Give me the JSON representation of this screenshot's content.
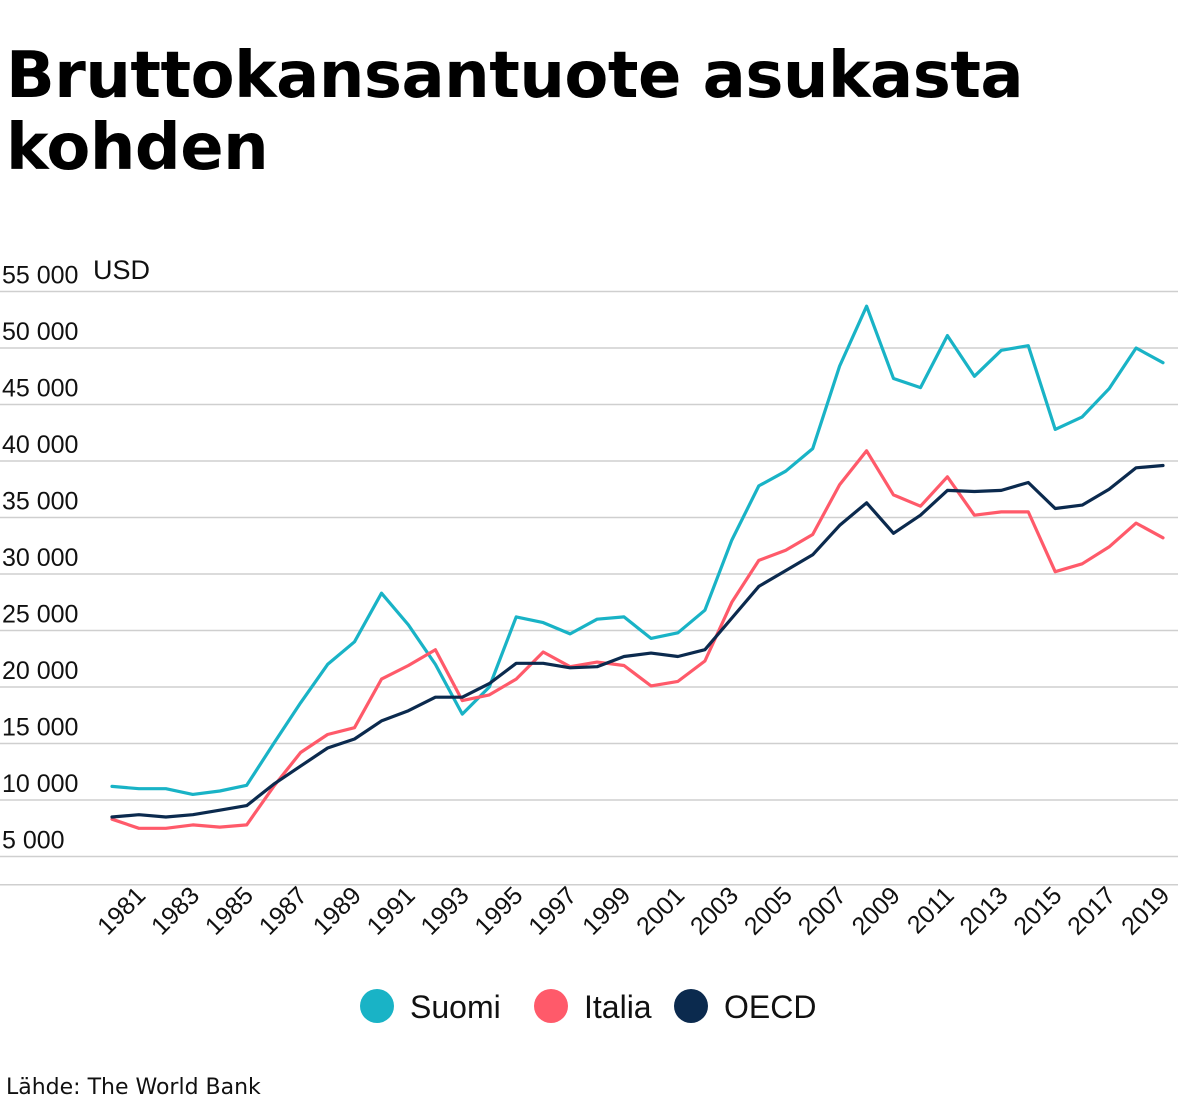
{
  "chart_data": {
    "type": "line",
    "title": "Bruttokansantuote asukasta kohden",
    "ylabel": "USD",
    "ylim": [
      3000,
      55000
    ],
    "yticks": [
      {
        "value": 55000,
        "label": "55 000"
      },
      {
        "value": 50000,
        "label": "50 000"
      },
      {
        "value": 45000,
        "label": "45 000"
      },
      {
        "value": 40000,
        "label": "40 000"
      },
      {
        "value": 35000,
        "label": "35 000"
      },
      {
        "value": 30000,
        "label": "30 000"
      },
      {
        "value": 25000,
        "label": "25 000"
      },
      {
        "value": 20000,
        "label": "20 000"
      },
      {
        "value": 15000,
        "label": "15 000"
      },
      {
        "value": 10000,
        "label": "10 000"
      },
      {
        "value": 5000,
        "label": "5 000"
      }
    ],
    "x": [
      1980,
      1981,
      1982,
      1983,
      1984,
      1985,
      1986,
      1987,
      1988,
      1989,
      1990,
      1991,
      1992,
      1993,
      1994,
      1995,
      1996,
      1997,
      1998,
      1999,
      2000,
      2001,
      2002,
      2003,
      2004,
      2005,
      2006,
      2007,
      2008,
      2009,
      2010,
      2011,
      2012,
      2013,
      2014,
      2015,
      2016,
      2017,
      2018,
      2019
    ],
    "xticks": [
      "1981",
      "1983",
      "1985",
      "1987",
      "1989",
      "1991",
      "1993",
      "1995",
      "1997",
      "1999",
      "2001",
      "2003",
      "2005",
      "2007",
      "2009",
      "2011",
      "2013",
      "2015",
      "2017",
      "2019"
    ],
    "grid": true,
    "legend_position": "bottom",
    "series": [
      {
        "name": "Suomi",
        "color": "#19b3c6",
        "values": [
          11200,
          11000,
          11000,
          10500,
          10800,
          11300,
          15000,
          18600,
          22000,
          24000,
          28300,
          25500,
          22000,
          17600,
          20000,
          26200,
          25700,
          24700,
          26000,
          26200,
          24300,
          24800,
          26800,
          33000,
          37800,
          39100,
          41100,
          48400,
          53700,
          47300,
          46500,
          51100,
          47500,
          49800,
          50200,
          42800,
          43900,
          46400,
          50000,
          48700
        ]
      },
      {
        "name": "Italia",
        "color": "#ff5a6a",
        "values": [
          8300,
          7500,
          7500,
          7800,
          7600,
          7800,
          11200,
          14200,
          15800,
          16400,
          20700,
          21900,
          23300,
          18800,
          19300,
          20700,
          23100,
          21800,
          22200,
          21900,
          20100,
          20500,
          22300,
          27500,
          31200,
          32100,
          33500,
          37900,
          40900,
          37000,
          36000,
          38600,
          35200,
          35500,
          35500,
          30200,
          30900,
          32400,
          34500,
          33200
        ]
      },
      {
        "name": "OECD",
        "color": "#0b2a4e",
        "values": [
          8500,
          8700,
          8500,
          8700,
          9100,
          9500,
          11400,
          13000,
          14600,
          15400,
          17000,
          17900,
          19100,
          19100,
          20300,
          22100,
          22100,
          21700,
          21800,
          22700,
          23000,
          22700,
          23300,
          26100,
          28900,
          30300,
          31700,
          34300,
          36300,
          33600,
          35200,
          37400,
          37300,
          37400,
          38100,
          35800,
          36100,
          37500,
          39400,
          39600
        ]
      }
    ]
  },
  "source": {
    "label": "Lähde: The World Bank"
  }
}
